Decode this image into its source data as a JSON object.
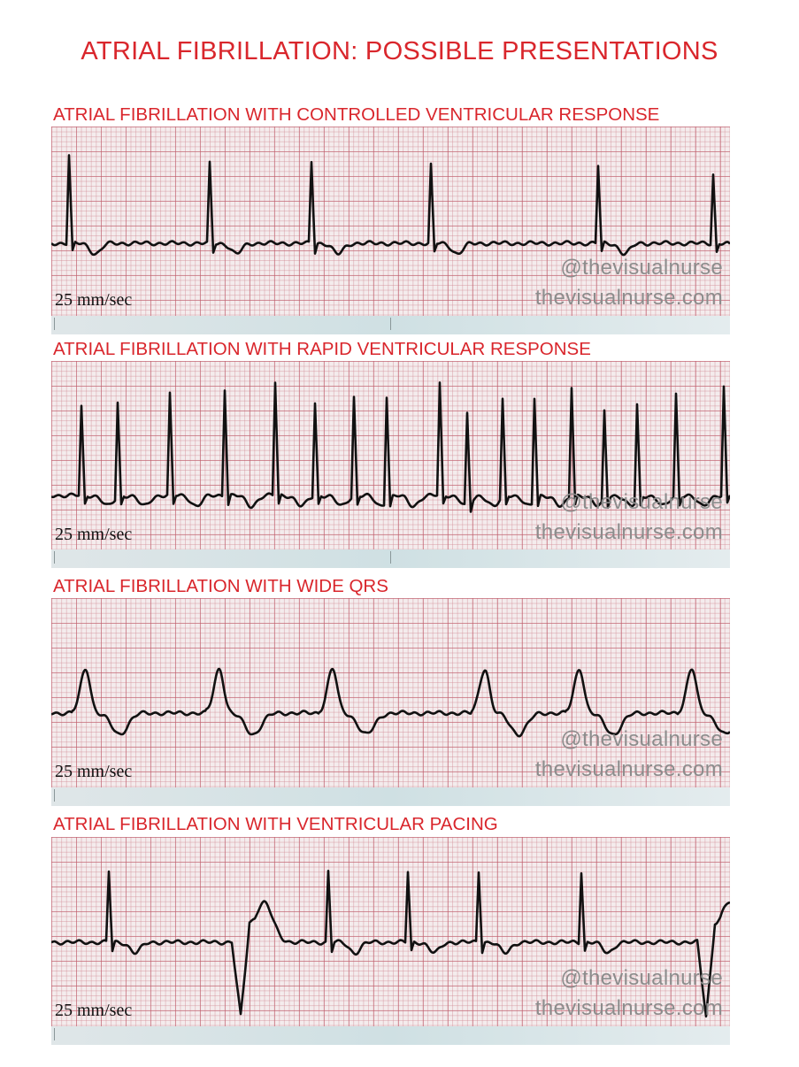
{
  "title": "ATRIAL FIBRILLATION: POSSIBLE PRESENTATIONS",
  "strips": [
    {
      "label": "ATRIAL FIBRILLATION WITH CONTROLLED VENTRICULAR RESPONSE",
      "speed": "25 mm/sec",
      "watermark_handle": "@thevisualnurse",
      "watermark_site": "thevisualnurse.com"
    },
    {
      "label": "ATRIAL FIBRILLATION WITH RAPID VENTRICULAR RESPONSE",
      "speed": "25 mm/sec",
      "watermark_handle": "@thevisualnurse",
      "watermark_site": "thevisualnurse.com"
    },
    {
      "label": "ATRIAL FIBRILLATION WITH WIDE QRS",
      "speed": "25 mm/sec",
      "watermark_handle": "@thevisualnurse",
      "watermark_site": "thevisualnurse.com"
    },
    {
      "label": "ATRIAL FIBRILLATION WITH VENTRICULAR PACING",
      "speed": "25 mm/sec",
      "watermark_handle": "@thevisualnurse",
      "watermark_site": "thevisualnurse.com"
    }
  ],
  "colors": {
    "title": "#d9262c",
    "trace": "#111111",
    "grid_major": "#be5a69",
    "grid_minor": "#d28c96",
    "paper": "#f4eced",
    "watermark": "#8c8c8c"
  }
}
